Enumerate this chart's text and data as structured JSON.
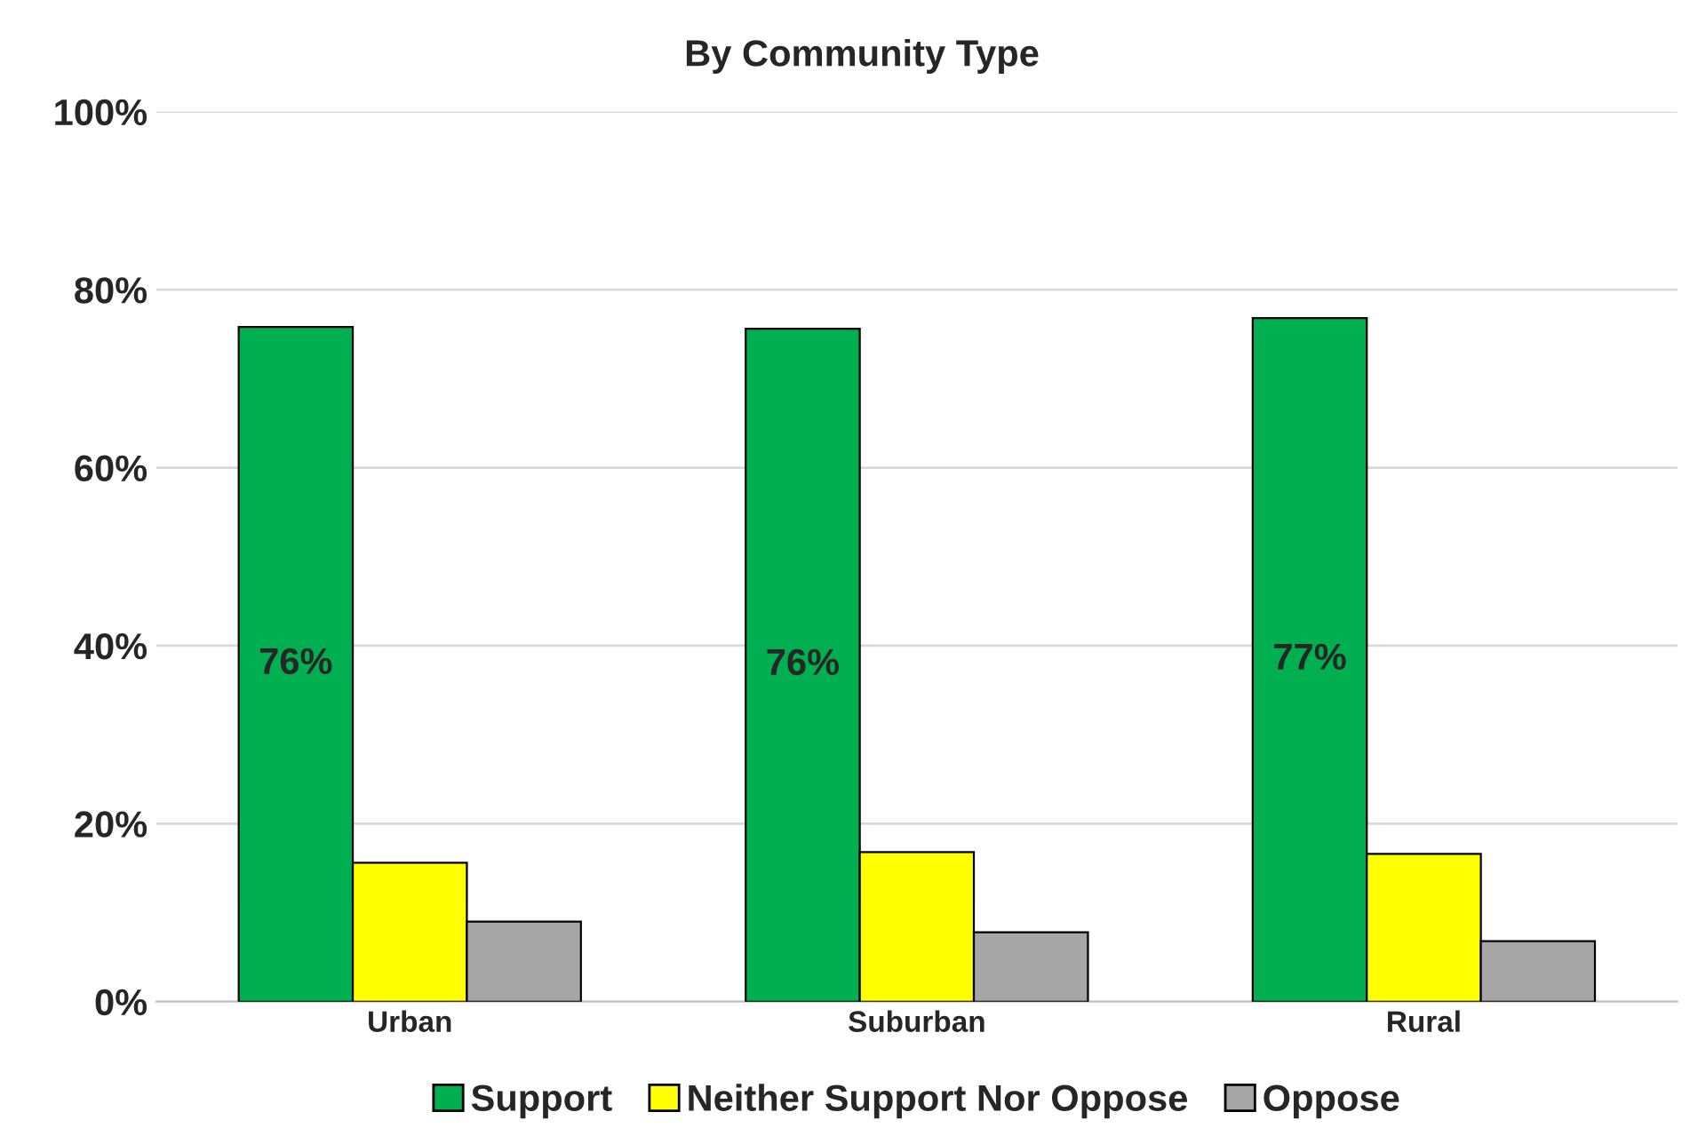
{
  "chart_data": {
    "type": "bar",
    "title": "By Community Type",
    "categories": [
      "Urban",
      "Suburban",
      "Rural"
    ],
    "series": [
      {
        "name": "Support",
        "color": "#00b050",
        "values": [
          75.8,
          75.6,
          76.8
        ],
        "value_labels": [
          "76%",
          "76%",
          "77%"
        ]
      },
      {
        "name": "Neither Support Nor Oppose",
        "color": "#ffff00",
        "values": [
          15.6,
          16.8,
          16.6
        ]
      },
      {
        "name": "Oppose",
        "color": "#a6a6a6",
        "values": [
          9.0,
          7.8,
          6.8
        ]
      }
    ],
    "ylim": [
      0,
      100
    ],
    "yticks": [
      {
        "value": 0,
        "label": "0%"
      },
      {
        "value": 20,
        "label": "20%"
      },
      {
        "value": 40,
        "label": "40%"
      },
      {
        "value": 60,
        "label": "60%"
      },
      {
        "value": 80,
        "label": "80%"
      },
      {
        "value": 100,
        "label": "100%"
      }
    ],
    "grid": "y",
    "legend": "bottom"
  }
}
